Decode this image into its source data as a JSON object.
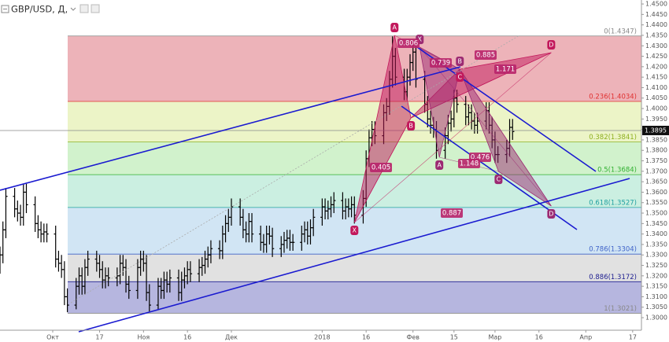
{
  "chart_data": {
    "type": "ohlc",
    "title": "GBP/USD, Д,",
    "x": [
      -18,
      -17,
      -16,
      -13,
      -12,
      -11,
      -10,
      -9,
      -6,
      -5,
      -4,
      -3,
      -2,
      1,
      2,
      3,
      4,
      5,
      8,
      9,
      10,
      11,
      12,
      15,
      16,
      17,
      18,
      19,
      22,
      23,
      24,
      25,
      26,
      29,
      30,
      31,
      32,
      33,
      36,
      37,
      38,
      39,
      40,
      43,
      44,
      45,
      46,
      47,
      50,
      51,
      52,
      53,
      54,
      57,
      58,
      59,
      60,
      61,
      64,
      65,
      66,
      67,
      68,
      71,
      72,
      73,
      74,
      75,
      78,
      79,
      80,
      81,
      82,
      85,
      86,
      87,
      88,
      89,
      92,
      93,
      94,
      95,
      96,
      99,
      100,
      101,
      102,
      103,
      106,
      107,
      108,
      109,
      110,
      113,
      114,
      115,
      116,
      117,
      120,
      121,
      122,
      123,
      124,
      127,
      128,
      129,
      130,
      131,
      134,
      135,
      136,
      137,
      138,
      141,
      142,
      143,
      144,
      145,
      148,
      149,
      150,
      151,
      152,
      155,
      156,
      157
    ],
    "open": [
      1.325,
      1.33,
      1.342,
      1.358,
      1.352,
      1.35,
      1.348,
      1.36,
      1.354,
      1.345,
      1.342,
      1.34,
      1.341,
      1.34,
      1.328,
      1.326,
      1.323,
      1.31,
      1.306,
      1.315,
      1.32,
      1.315,
      1.324,
      1.328,
      1.326,
      1.323,
      1.318,
      1.32,
      1.319,
      1.32,
      1.326,
      1.324,
      1.316,
      1.313,
      1.324,
      1.328,
      1.326,
      1.312,
      1.306,
      1.315,
      1.313,
      1.318,
      1.316,
      1.319,
      1.312,
      1.318,
      1.32,
      1.323,
      1.321,
      1.324,
      1.325,
      1.328,
      1.33,
      1.333,
      1.332,
      1.34,
      1.345,
      1.348,
      1.353,
      1.348,
      1.342,
      1.34,
      1.346,
      1.34,
      1.336,
      1.335,
      1.34,
      1.339,
      1.333,
      1.335,
      1.337,
      1.338,
      1.336,
      1.336,
      1.34,
      1.342,
      1.339,
      1.343,
      1.348,
      1.353,
      1.351,
      1.352,
      1.354,
      1.356,
      1.351,
      1.353,
      1.352,
      1.354,
      1.349,
      1.357,
      1.376,
      1.386,
      1.39,
      1.387,
      1.398,
      1.401,
      1.414,
      1.425,
      1.415,
      1.408,
      1.415,
      1.422,
      1.427,
      1.414,
      1.402,
      1.395,
      1.392,
      1.39,
      1.38,
      1.387,
      1.393,
      1.395,
      1.405,
      1.402,
      1.396,
      1.398,
      1.394,
      1.392,
      1.394,
      1.399,
      1.392,
      1.385,
      1.378,
      1.378,
      1.381,
      1.391
    ],
    "high": [
      1.334,
      1.346,
      1.362,
      1.362,
      1.356,
      1.354,
      1.364,
      1.364,
      1.358,
      1.349,
      1.346,
      1.345,
      1.345,
      1.344,
      1.332,
      1.33,
      1.327,
      1.314,
      1.319,
      1.324,
      1.324,
      1.328,
      1.332,
      1.332,
      1.33,
      1.327,
      1.324,
      1.324,
      1.324,
      1.33,
      1.33,
      1.328,
      1.32,
      1.328,
      1.332,
      1.332,
      1.33,
      1.316,
      1.319,
      1.319,
      1.322,
      1.322,
      1.323,
      1.323,
      1.322,
      1.324,
      1.327,
      1.327,
      1.328,
      1.329,
      1.332,
      1.334,
      1.337,
      1.337,
      1.344,
      1.349,
      1.352,
      1.357,
      1.357,
      1.352,
      1.346,
      1.35,
      1.35,
      1.344,
      1.34,
      1.344,
      1.344,
      1.343,
      1.339,
      1.341,
      1.342,
      1.342,
      1.34,
      1.344,
      1.346,
      1.346,
      1.347,
      1.352,
      1.357,
      1.357,
      1.356,
      1.358,
      1.36,
      1.36,
      1.357,
      1.357,
      1.358,
      1.358,
      1.361,
      1.38,
      1.39,
      1.394,
      1.394,
      1.402,
      1.405,
      1.418,
      1.4345,
      1.429,
      1.419,
      1.419,
      1.426,
      1.431,
      1.431,
      1.418,
      1.406,
      1.399,
      1.396,
      1.394,
      1.391,
      1.397,
      1.399,
      1.409,
      1.409,
      1.406,
      1.402,
      1.402,
      1.398,
      1.398,
      1.403,
      1.403,
      1.396,
      1.389,
      1.382,
      1.385,
      1.395,
      1.395
    ],
    "low": [
      1.321,
      1.326,
      1.338,
      1.348,
      1.346,
      1.344,
      1.344,
      1.35,
      1.341,
      1.338,
      1.336,
      1.336,
      1.336,
      1.324,
      1.322,
      1.319,
      1.306,
      1.3026,
      1.304,
      1.311,
      1.311,
      1.311,
      1.32,
      1.322,
      1.319,
      1.314,
      1.314,
      1.315,
      1.315,
      1.316,
      1.32,
      1.312,
      1.309,
      1.309,
      1.32,
      1.322,
      1.308,
      1.303,
      1.304,
      1.309,
      1.309,
      1.312,
      1.312,
      1.308,
      1.308,
      1.314,
      1.316,
      1.317,
      1.317,
      1.32,
      1.321,
      1.324,
      1.326,
      1.328,
      1.328,
      1.336,
      1.341,
      1.344,
      1.344,
      1.338,
      1.336,
      1.336,
      1.336,
      1.332,
      1.331,
      1.331,
      1.335,
      1.329,
      1.329,
      1.331,
      1.333,
      1.332,
      1.332,
      1.332,
      1.336,
      1.335,
      1.335,
      1.339,
      1.344,
      1.347,
      1.347,
      1.348,
      1.35,
      1.347,
      1.347,
      1.348,
      1.348,
      1.345,
      1.345,
      1.353,
      1.372,
      1.382,
      1.383,
      1.383,
      1.394,
      1.397,
      1.41,
      1.411,
      1.404,
      1.404,
      1.411,
      1.418,
      1.41,
      1.398,
      1.391,
      1.388,
      1.386,
      1.376,
      1.376,
      1.383,
      1.389,
      1.391,
      1.398,
      1.392,
      1.392,
      1.39,
      1.388,
      1.388,
      1.39,
      1.388,
      1.381,
      1.374,
      1.374,
      1.374,
      1.377,
      1.385
    ],
    "close": [
      1.33,
      1.342,
      1.358,
      1.352,
      1.35,
      1.348,
      1.36,
      1.354,
      1.345,
      1.342,
      1.34,
      1.341,
      1.34,
      1.328,
      1.326,
      1.323,
      1.31,
      1.306,
      1.315,
      1.32,
      1.315,
      1.324,
      1.328,
      1.326,
      1.323,
      1.318,
      1.32,
      1.319,
      1.32,
      1.326,
      1.324,
      1.316,
      1.313,
      1.324,
      1.328,
      1.326,
      1.312,
      1.306,
      1.315,
      1.313,
      1.318,
      1.316,
      1.319,
      1.312,
      1.318,
      1.32,
      1.323,
      1.321,
      1.324,
      1.325,
      1.328,
      1.33,
      1.333,
      1.332,
      1.34,
      1.345,
      1.348,
      1.353,
      1.348,
      1.342,
      1.34,
      1.346,
      1.34,
      1.336,
      1.335,
      1.34,
      1.339,
      1.333,
      1.335,
      1.337,
      1.338,
      1.336,
      1.336,
      1.34,
      1.342,
      1.339,
      1.343,
      1.348,
      1.353,
      1.351,
      1.352,
      1.354,
      1.356,
      1.351,
      1.353,
      1.352,
      1.354,
      1.349,
      1.357,
      1.376,
      1.386,
      1.39,
      1.387,
      1.398,
      1.401,
      1.414,
      1.425,
      1.415,
      1.408,
      1.415,
      1.422,
      1.427,
      1.414,
      1.402,
      1.395,
      1.392,
      1.39,
      1.38,
      1.387,
      1.393,
      1.395,
      1.405,
      1.402,
      1.396,
      1.398,
      1.394,
      1.392,
      1.394,
      1.399,
      1.392,
      1.385,
      1.378,
      1.378,
      1.381,
      1.391,
      1.389
    ],
    "xlim": [
      -18,
      201
    ],
    "xticks": [
      {
        "value": 0,
        "label": "Окт"
      },
      {
        "value": 16,
        "label": "17"
      },
      {
        "value": 31,
        "label": "Ноя"
      },
      {
        "value": 46,
        "label": "16"
      },
      {
        "value": 61,
        "label": "Дек"
      },
      {
        "value": 92,
        "label": "2018"
      },
      {
        "value": 107,
        "label": "16"
      },
      {
        "value": 123,
        "label": "Фев"
      },
      {
        "value": 137,
        "label": "15"
      },
      {
        "value": 151,
        "label": "Мар"
      },
      {
        "value": 166,
        "label": "16"
      },
      {
        "value": 182,
        "label": "Апр"
      },
      {
        "value": 198,
        "label": "17"
      }
    ],
    "ylim": [
      1.294,
      1.4519
    ],
    "yticks": [
      {
        "value": 1.3,
        "label": "1.3000"
      },
      {
        "value": 1.305,
        "label": "1.3050"
      },
      {
        "value": 1.31,
        "label": "1.3100"
      },
      {
        "value": 1.315,
        "label": "1.3150"
      },
      {
        "value": 1.32,
        "label": "1.3200"
      },
      {
        "value": 1.325,
        "label": "1.3250"
      },
      {
        "value": 1.33,
        "label": "1.3300"
      },
      {
        "value": 1.335,
        "label": "1.3350"
      },
      {
        "value": 1.34,
        "label": "1.3400"
      },
      {
        "value": 1.345,
        "label": "1.3450"
      },
      {
        "value": 1.35,
        "label": "1.3500"
      },
      {
        "value": 1.355,
        "label": "1.3550"
      },
      {
        "value": 1.36,
        "label": "1.3600"
      },
      {
        "value": 1.365,
        "label": "1.3650"
      },
      {
        "value": 1.37,
        "label": "1.3700"
      },
      {
        "value": 1.375,
        "label": "1.3750"
      },
      {
        "value": 1.38,
        "label": "1.3800"
      },
      {
        "value": 1.385,
        "label": "1.3850"
      },
      {
        "value": 1.39,
        "label": "1.3900"
      },
      {
        "value": 1.395,
        "label": "1.3950"
      },
      {
        "value": 1.4,
        "label": "1.4000"
      },
      {
        "value": 1.405,
        "label": "1.4050"
      },
      {
        "value": 1.41,
        "label": "1.4100"
      },
      {
        "value": 1.415,
        "label": "1.4150"
      },
      {
        "value": 1.42,
        "label": "1.4200"
      },
      {
        "value": 1.425,
        "label": "1.4250"
      },
      {
        "value": 1.43,
        "label": "1.4300"
      },
      {
        "value": 1.435,
        "label": "1.4350"
      },
      {
        "value": 1.44,
        "label": "1.4400"
      },
      {
        "value": 1.445,
        "label": "1.4450"
      },
      {
        "value": 1.45,
        "label": "1.4500"
      }
    ],
    "last_price": 1.3895,
    "fib_levels": [
      {
        "label": "0(1.4347)",
        "price": 1.4347,
        "color": "#888888"
      },
      {
        "label": "0.236(1.4034)",
        "price": 1.4034,
        "color": "#e03030",
        "fill": "#eaa6ad"
      },
      {
        "label": "0.382(1.3841)",
        "price": 1.3841,
        "color": "#8fb020",
        "fill": "#e9f2bd"
      },
      {
        "label": "0.5(1.3684)",
        "price": 1.3684,
        "color": "#30b030",
        "fill": "#c9f0c3"
      },
      {
        "label": "0.618(1.3527)",
        "price": 1.3527,
        "color": "#20a0a0",
        "fill": "#c2ecdc"
      },
      {
        "label": "0.786(1.3304)",
        "price": 1.3304,
        "color": "#3f63c8",
        "fill": "#c9e1f2"
      },
      {
        "label": "0.886(1.3172)",
        "price": 1.3172,
        "color": "#202090",
        "fill": "#dcdcdc"
      },
      {
        "label": "1(1.3021)",
        "price": 1.3021,
        "color": "#888888",
        "fill": "#a9a9d9"
      }
    ],
    "patterns": [
      {
        "color": "#c2185b",
        "points": [
          {
            "label": "X",
            "x": 103,
            "price": 1.3455
          },
          {
            "label": "A",
            "x": 116.7,
            "price": 1.435
          },
          {
            "label": "B",
            "x": 122.3,
            "price": 1.3955
          },
          {
            "label": "C",
            "x": 139,
            "price": 1.4188
          },
          {
            "label": "D",
            "x": 170.2,
            "price": 1.4267
          }
        ]
      },
      {
        "color": "#9c2a72",
        "points": [
          {
            "label": "X",
            "x": 125.3,
            "price": 1.4293
          },
          {
            "label": "A",
            "x": 132,
            "price": 1.3767
          },
          {
            "label": "B",
            "x": 139,
            "price": 1.4188
          },
          {
            "label": "C",
            "x": 152.2,
            "price": 1.3699
          },
          {
            "label": "D",
            "x": 170.2,
            "price": 1.3534
          }
        ]
      }
    ],
    "ratios": [
      0.806,
      0.739,
      0.885,
      1.171,
      0.405,
      0.476,
      1.148,
      0.887
    ]
  }
}
